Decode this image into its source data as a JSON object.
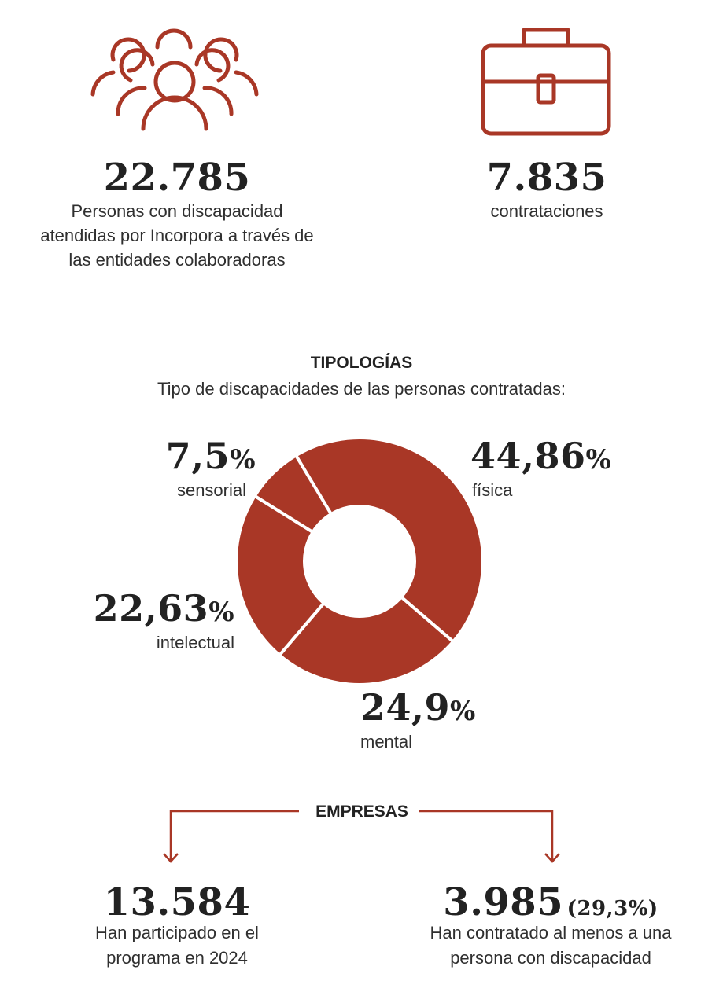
{
  "stats": {
    "people": {
      "value": "22.785",
      "label_lines": [
        "Personas con discapacidad",
        "atendidas por Incorpora a través de",
        "las entidades colaboradoras"
      ],
      "icon": "people-group-icon"
    },
    "hires": {
      "value": "7.835",
      "label": "contrataciones",
      "icon": "briefcase-icon"
    }
  },
  "typologies": {
    "title": "TIPOLOGÍAS",
    "subtitle": "Tipo de discapacidades de las personas contratadas:"
  },
  "chart_data": {
    "type": "pie",
    "donut": true,
    "categories": [
      "física",
      "mental",
      "intelectual",
      "sensorial"
    ],
    "values": [
      44.86,
      24.9,
      22.63,
      7.5
    ],
    "value_labels": [
      "44,86",
      "24,9",
      "22,63",
      "7,5"
    ],
    "unit": "%",
    "color": "#a93726"
  },
  "companies": {
    "title": "EMPRESAS",
    "participated": {
      "value": "13.584",
      "label_lines": [
        "Han participado en el",
        "programa en 2024"
      ]
    },
    "hired": {
      "value": "3.985",
      "pct": "(29,3%)",
      "label_lines": [
        "Han contratado al menos a una",
        "persona con discapacidad"
      ]
    }
  },
  "colors": {
    "accent": "#a93726",
    "text": "#2a2a2a"
  }
}
